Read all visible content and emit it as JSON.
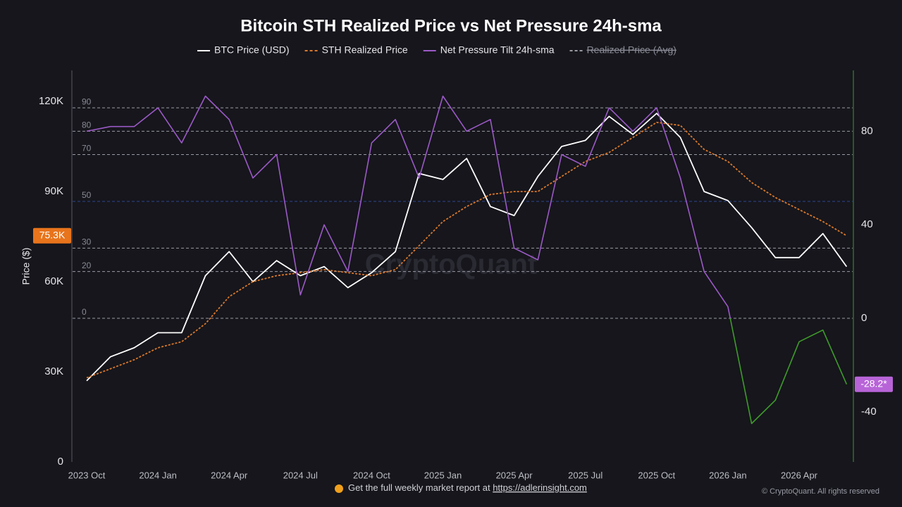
{
  "chart_data": {
    "type": "line",
    "title": "Bitcoin STH Realized Price vs Net Pressure 24h-sma",
    "y_label": "Price ($)",
    "watermark": "CryptoQuant",
    "x": [
      "2023-10",
      "2023-11",
      "2023-12",
      "2024-01",
      "2024-02",
      "2024-03",
      "2024-04",
      "2024-05",
      "2024-06",
      "2024-07",
      "2024-08",
      "2024-09",
      "2024-10",
      "2024-11",
      "2024-12",
      "2025-01",
      "2025-02",
      "2025-03",
      "2025-04",
      "2025-05",
      "2025-06",
      "2025-07",
      "2025-08",
      "2025-09",
      "2025-10",
      "2025-11",
      "2025-12",
      "2026-01",
      "2026-02",
      "2026-03",
      "2026-04",
      "2026-05",
      "2026-06"
    ],
    "xticks": [
      {
        "value": "2023-10",
        "label": "2023 Oct"
      },
      {
        "value": "2024-01",
        "label": "2024 Jan"
      },
      {
        "value": "2024-04",
        "label": "2024 Apr"
      },
      {
        "value": "2024-07",
        "label": "2024 Jul"
      },
      {
        "value": "2024-10",
        "label": "2024 Oct"
      },
      {
        "value": "2025-01",
        "label": "2025 Jan"
      },
      {
        "value": "2025-04",
        "label": "2025 Apr"
      },
      {
        "value": "2025-07",
        "label": "2025 Jul"
      },
      {
        "value": "2025-10",
        "label": "2025 Oct"
      },
      {
        "value": "2026-01",
        "label": "2026 Jan"
      },
      {
        "value": "2026-04",
        "label": "2026 Apr"
      }
    ],
    "ylim": [
      0,
      130000
    ],
    "yticks": [
      0,
      {
        "value": 30000,
        "label": "30K"
      },
      {
        "value": 60000,
        "label": "60K"
      },
      {
        "value": 90000,
        "label": "90K"
      },
      {
        "value": 120000,
        "label": "120K"
      }
    ],
    "y2lim": [
      -61.4,
      105.6
    ],
    "y2ticks": [
      -40,
      0,
      40,
      80
    ],
    "reference_lines": {
      "values": [
        90,
        80,
        70,
        50,
        30,
        20,
        0
      ],
      "colors": [
        "#9a9aa6",
        "#9a9aa6",
        "#9a9aa6",
        "#2c4690",
        "#9a9aa6",
        "#9a9aa6",
        "#9a9aa6"
      ]
    },
    "series": [
      {
        "name": "BTC Price (USD)",
        "color": "#ffffff",
        "style": "solid",
        "values": [
          27000,
          35000,
          38000,
          43000,
          43000,
          62000,
          70000,
          60000,
          67000,
          62000,
          65000,
          58000,
          63000,
          70000,
          96000,
          94000,
          101000,
          85000,
          82000,
          95000,
          105000,
          107000,
          115000,
          109000,
          116000,
          108000,
          90000,
          87000,
          78000,
          68000,
          68000,
          76000,
          65000
        ]
      },
      {
        "name": "STH Realized Price",
        "color": "#d9772b",
        "style": "dashed",
        "values": [
          28000,
          31000,
          34000,
          38000,
          40000,
          46000,
          55000,
          60000,
          62000,
          63000,
          64000,
          63000,
          62000,
          64000,
          72000,
          80000,
          85000,
          89000,
          90000,
          90000,
          95000,
          100000,
          103000,
          108000,
          113000,
          112000,
          104000,
          100000,
          93000,
          88000,
          84000,
          80000,
          75300
        ]
      },
      {
        "name": "Net Pressure Tilt 24h-sma",
        "color": "#9b59c6",
        "negative_color": "#3f9a2a",
        "style": "solid",
        "axis": "y2",
        "values": [
          80,
          82,
          82,
          90,
          75,
          95,
          85,
          60,
          70,
          10,
          40,
          20,
          75,
          85,
          60,
          95,
          80,
          85,
          30,
          25,
          70,
          65,
          90,
          80,
          90,
          60,
          20,
          5,
          -45,
          -35,
          -10,
          -5,
          -28.2
        ]
      }
    ],
    "hidden_series": [
      {
        "name": "Realized Price (Avg)",
        "color": "#9a9aa6"
      }
    ],
    "last_labels": [
      {
        "label": "75.3K",
        "value": 75300,
        "axis": "y",
        "color": "#e8741c"
      },
      {
        "label": "-28.2*",
        "value": -28.2,
        "axis": "y2",
        "color": "#b864d8"
      }
    ],
    "footer": {
      "text": "Get the full weekly market report at ",
      "link": "https://adlerinsight.com",
      "copyright": "© CryptoQuant. All rights reserved"
    }
  }
}
